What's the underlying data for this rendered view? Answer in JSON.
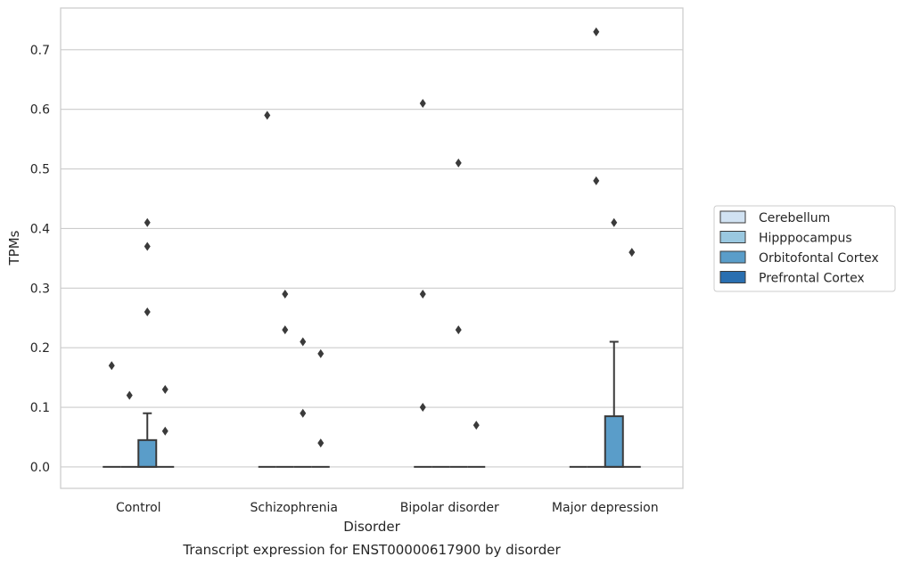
{
  "chart_data": {
    "type": "box",
    "title": "",
    "caption": "Transcript expression for ENST00000617900 by disorder",
    "xlabel": "Disorder",
    "ylabel": "TPMs",
    "ylim": [
      -0.036,
      0.77
    ],
    "yticks": [
      0.0,
      0.1,
      0.2,
      0.3,
      0.4,
      0.5,
      0.6,
      0.7
    ],
    "ytick_labels": [
      "0.0",
      "0.1",
      "0.2",
      "0.3",
      "0.4",
      "0.5",
      "0.6",
      "0.7"
    ],
    "categories": [
      "Control",
      "Schizophrenia",
      "Bipolar disorder",
      "Major depression"
    ],
    "grid": "horizontal",
    "legend_position": "right",
    "series": [
      {
        "name": "Cerebellum",
        "color": "#d1e2f2",
        "boxes": [
          {
            "q1": 0,
            "median": 0,
            "q3": 0,
            "whisker_low": 0,
            "whisker_high": 0,
            "outliers": [
              0.17
            ]
          },
          {
            "q1": 0,
            "median": 0,
            "q3": 0,
            "whisker_low": 0,
            "whisker_high": 0,
            "outliers": [
              0.59
            ]
          },
          {
            "q1": 0,
            "median": 0,
            "q3": 0,
            "whisker_low": 0,
            "whisker_high": 0,
            "outliers": [
              0.61,
              0.29,
              0.1
            ]
          },
          {
            "q1": 0,
            "median": 0,
            "q3": 0,
            "whisker_low": 0,
            "whisker_high": 0,
            "outliers": []
          }
        ]
      },
      {
        "name": "Hipppocampus",
        "color": "#9ac8e0",
        "boxes": [
          {
            "q1": 0,
            "median": 0,
            "q3": 0,
            "whisker_low": 0,
            "whisker_high": 0,
            "outliers": [
              0.12
            ]
          },
          {
            "q1": 0,
            "median": 0,
            "q3": 0,
            "whisker_low": 0,
            "whisker_high": 0,
            "outliers": [
              0.29,
              0.23
            ]
          },
          {
            "q1": 0,
            "median": 0,
            "q3": 0,
            "whisker_low": 0,
            "whisker_high": 0,
            "outliers": []
          },
          {
            "q1": 0,
            "median": 0,
            "q3": 0,
            "whisker_low": 0,
            "whisker_high": 0,
            "outliers": [
              0.73,
              0.48
            ]
          }
        ]
      },
      {
        "name": "Orbitofontal Cortex",
        "color": "#5a9dc9",
        "boxes": [
          {
            "q1": 0,
            "median": 0,
            "q3": 0.045,
            "whisker_low": 0,
            "whisker_high": 0.09,
            "outliers": [
              0.41,
              0.37,
              0.26
            ]
          },
          {
            "q1": 0,
            "median": 0,
            "q3": 0,
            "whisker_low": 0,
            "whisker_high": 0,
            "outliers": [
              0.21,
              0.09
            ]
          },
          {
            "q1": 0,
            "median": 0,
            "q3": 0,
            "whisker_low": 0,
            "whisker_high": 0,
            "outliers": [
              0.51,
              0.23
            ]
          },
          {
            "q1": 0,
            "median": 0,
            "q3": 0.085,
            "whisker_low": 0,
            "whisker_high": 0.21,
            "outliers": [
              0.41
            ]
          }
        ]
      },
      {
        "name": "Prefrontal Cortex",
        "color": "#2a6fb0",
        "boxes": [
          {
            "q1": 0,
            "median": 0,
            "q3": 0,
            "whisker_low": 0,
            "whisker_high": 0,
            "outliers": [
              0.13,
              0.06
            ]
          },
          {
            "q1": 0,
            "median": 0,
            "q3": 0,
            "whisker_low": 0,
            "whisker_high": 0,
            "outliers": [
              0.19,
              0.04
            ]
          },
          {
            "q1": 0,
            "median": 0,
            "q3": 0,
            "whisker_low": 0,
            "whisker_high": 0,
            "outliers": [
              0.07
            ]
          },
          {
            "q1": 0,
            "median": 0,
            "q3": 0,
            "whisker_low": 0,
            "whisker_high": 0,
            "outliers": [
              0.36
            ]
          }
        ]
      }
    ]
  }
}
